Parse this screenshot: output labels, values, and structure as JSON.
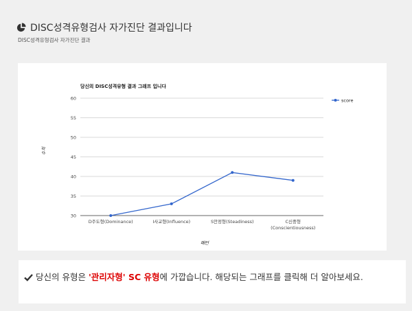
{
  "header": {
    "title": "DISC성격유형검사 자가진단 결과입니다",
    "subtitle": "DISC성격유형검사 자가진단 결과",
    "icon": "pie-chart-icon"
  },
  "chart_data": {
    "type": "line",
    "title": "당신의 DISC성격유형 결과 그래프 입니다",
    "xlabel": "패턴",
    "ylabel": "수치",
    "categories": [
      "D주도형(Dominance)",
      "I사교형(Influence)",
      "S안정형(Steadiness)",
      "C신중형\n(Conscientiousness)"
    ],
    "series": [
      {
        "name": "score",
        "values": [
          30,
          33,
          41,
          39
        ],
        "color": "#3366cc"
      }
    ],
    "ylim": [
      30,
      60
    ],
    "yticks": [
      30,
      35,
      40,
      45,
      50,
      55,
      60
    ],
    "grid": true,
    "legend": "right"
  },
  "result": {
    "icon": "check-icon",
    "prefix": "당신의 유형은 ",
    "type_name": "'관리자형' SC 유형",
    "suffix": "에 가깝습니다. 해당되는 그래프를 클릭해 더 알아보세요.",
    "highlight_color": "#dd0000"
  }
}
